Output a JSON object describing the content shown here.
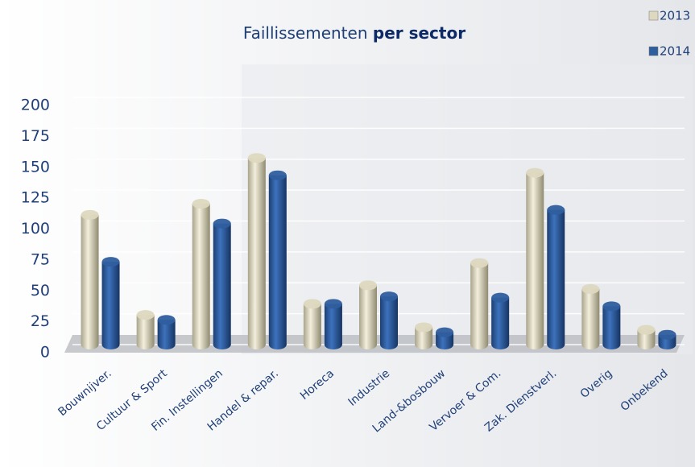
{
  "chart_data": {
    "type": "bar",
    "title": [
      "Faillissementen",
      "per sector"
    ],
    "categories": [
      "Bouwnijver.",
      "Cultuur & Sport",
      "Fin. Instellingen",
      "Handel & repar.",
      "Horeca",
      "Industrie",
      "Land-&bosbouw",
      "Vervoer & Com.",
      "Zak. Dienstverl.",
      "Overig",
      "Onbekend"
    ],
    "series": [
      {
        "name": "2013",
        "color": "#ddd8bf",
        "values": [
          105,
          24,
          114,
          151,
          33,
          48,
          14,
          66,
          139,
          45,
          12
        ]
      },
      {
        "name": "2014",
        "color": "#2f5e9e",
        "values": [
          67,
          20,
          98,
          137,
          33,
          39,
          10,
          38,
          109,
          31,
          8
        ]
      }
    ],
    "ylim": [
      0,
      200
    ],
    "yticks": [
      0,
      25,
      50,
      75,
      100,
      125,
      150,
      175,
      200
    ],
    "grid": true,
    "legend": "top-right"
  }
}
